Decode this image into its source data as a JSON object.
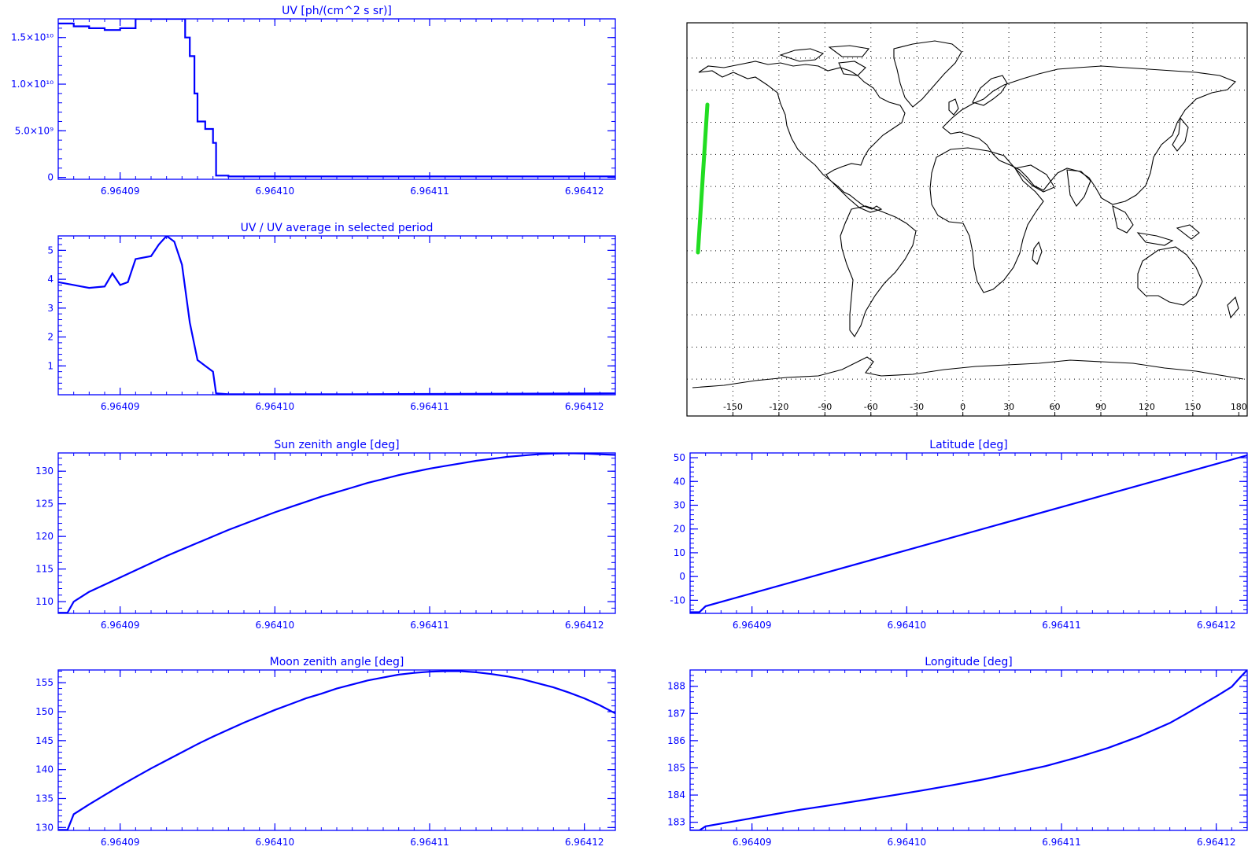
{
  "colors": {
    "axis": "#0000ff",
    "line": "#0000ff",
    "map_line": "#000000",
    "track": "#22dd22",
    "grid": "#000000"
  },
  "xticks": [
    "6.96409",
    "6.96410",
    "6.96411",
    "6.96412"
  ],
  "map": {
    "xticks": [
      "-150",
      "-120",
      "-90",
      "-60",
      "-30",
      "0",
      "30",
      "60",
      "90",
      "120",
      "150",
      "180"
    ],
    "track": {
      "lon": [
        -175,
        -174
      ],
      "lat": [
        -12,
        52
      ],
      "color": "#22dd22"
    }
  },
  "chart_data": [
    {
      "id": "uv",
      "type": "line",
      "title": "UV [ph/(cm^2 s sr)]",
      "y_tick_labels": [
        "0",
        "5.0×10⁹",
        "1.0×10¹⁰",
        "1.5×10¹⁰"
      ],
      "yticks": [
        0,
        5000000000.0,
        10000000000.0,
        15000000000.0
      ],
      "ylim": [
        -200000000.0,
        17000000000.0
      ],
      "xlim": [
        6.964086,
        6.964122
      ],
      "x": [
        6.964086,
        6.964087,
        6.964088,
        6.964089,
        6.96409,
        6.964091,
        6.964092,
        6.964093,
        6.964094,
        6.9640942,
        6.9640945,
        6.9640948,
        6.964095,
        6.9640955,
        6.964096,
        6.9640962,
        6.964097,
        6.964105,
        6.964122
      ],
      "y": [
        16500000000.0,
        16200000000.0,
        16000000000.0,
        15800000000.0,
        16000000000.0,
        17000000000.0,
        17000000000.0,
        17000000000.0,
        17000000000.0,
        15000000000.0,
        13000000000.0,
        9000000000.0,
        6000000000.0,
        5200000000.0,
        3700000000.0,
        200000000.0,
        100000000.0,
        100000000.0,
        120000000.0
      ]
    },
    {
      "id": "uv_ratio",
      "type": "line",
      "title": "UV / UV average in selected period",
      "y_tick_labels": [
        "1",
        "2",
        "3",
        "4",
        "5"
      ],
      "yticks": [
        1,
        2,
        3,
        4,
        5
      ],
      "ylim": [
        0,
        5.5
      ],
      "xlim": [
        6.964086,
        6.964122
      ],
      "x": [
        6.964086,
        6.964087,
        6.9640875,
        6.964088,
        6.964089,
        6.9640895,
        6.96409,
        6.9640905,
        6.964091,
        6.964092,
        6.9640925,
        6.964093,
        6.9640935,
        6.964094,
        6.9640945,
        6.964095,
        6.9640955,
        6.964096,
        6.9640962,
        6.964097,
        6.964105,
        6.964122
      ],
      "y": [
        3.9,
        3.8,
        3.75,
        3.7,
        3.75,
        4.2,
        3.8,
        3.9,
        4.7,
        4.8,
        5.2,
        5.5,
        5.3,
        4.5,
        2.5,
        1.2,
        1.0,
        0.8,
        0.05,
        0.02,
        0.02,
        0.05
      ]
    },
    {
      "id": "sun_zenith",
      "type": "line",
      "title": "Sun zenith angle [deg]",
      "y_tick_labels": [
        "110",
        "115",
        "120",
        "125",
        "130"
      ],
      "yticks": [
        110,
        115,
        120,
        125,
        130
      ],
      "ylim": [
        108.2,
        132.8
      ],
      "xlim": [
        6.964086,
        6.964122
      ],
      "x": [
        6.964086,
        6.9640866,
        6.964087,
        6.964088,
        6.964089,
        6.96409,
        6.964091,
        6.964092,
        6.964093,
        6.964094,
        6.964095,
        6.964096,
        6.964097,
        6.964098,
        6.964099,
        6.9641,
        6.964101,
        6.964102,
        6.964103,
        6.964104,
        6.964105,
        6.964106,
        6.964107,
        6.964108,
        6.964109,
        6.96411,
        6.964111,
        6.964112,
        6.964113,
        6.964114,
        6.964115,
        6.964116,
        6.964117,
        6.964118,
        6.964119,
        6.96412,
        6.964121,
        6.964122
      ],
      "y": [
        108.3,
        108.3,
        110.0,
        111.5,
        112.6,
        113.7,
        114.8,
        115.9,
        117.0,
        118.0,
        119.0,
        120.0,
        121.0,
        121.9,
        122.8,
        123.7,
        124.5,
        125.3,
        126.1,
        126.8,
        127.5,
        128.2,
        128.8,
        129.4,
        129.9,
        130.4,
        130.8,
        131.2,
        131.6,
        131.9,
        132.2,
        132.4,
        132.6,
        132.7,
        132.75,
        132.7,
        132.6,
        132.5
      ]
    },
    {
      "id": "latitude",
      "type": "line",
      "title": "Latitude [deg]",
      "y_tick_labels": [
        "-10",
        "0",
        "10",
        "20",
        "30",
        "40",
        "50"
      ],
      "yticks": [
        -10,
        0,
        10,
        20,
        30,
        40,
        50
      ],
      "ylim": [
        -15.5,
        52
      ],
      "xlim": [
        6.964086,
        6.964122
      ],
      "x": [
        6.964086,
        6.9640866,
        6.964087,
        6.964122
      ],
      "y": [
        -15,
        -15,
        -12.5,
        51
      ]
    },
    {
      "id": "moon_zenith",
      "type": "line",
      "title": "Moon zenith angle [deg]",
      "y_tick_labels": [
        "130",
        "135",
        "140",
        "145",
        "150",
        "155"
      ],
      "yticks": [
        130,
        135,
        140,
        145,
        150,
        155
      ],
      "ylim": [
        129.5,
        157.2
      ],
      "xlim": [
        6.964086,
        6.964122
      ],
      "x": [
        6.964086,
        6.9640866,
        6.964087,
        6.964088,
        6.964089,
        6.96409,
        6.964091,
        6.964092,
        6.964093,
        6.964094,
        6.964095,
        6.964096,
        6.964097,
        6.964098,
        6.964099,
        6.9641,
        6.964101,
        6.964102,
        6.964103,
        6.964104,
        6.964105,
        6.964106,
        6.964107,
        6.964108,
        6.964109,
        6.96411,
        6.964111,
        6.964112,
        6.964113,
        6.964114,
        6.964115,
        6.964116,
        6.964117,
        6.964118,
        6.964119,
        6.96412,
        6.964121,
        6.964122
      ],
      "y": [
        129.6,
        129.6,
        132.3,
        134.0,
        135.6,
        137.2,
        138.7,
        140.2,
        141.6,
        143.0,
        144.4,
        145.7,
        146.9,
        148.1,
        149.2,
        150.3,
        151.3,
        152.3,
        153.1,
        154.0,
        154.7,
        155.4,
        155.9,
        156.4,
        156.7,
        156.9,
        157.0,
        157.0,
        156.8,
        156.5,
        156.1,
        155.6,
        154.9,
        154.2,
        153.3,
        152.3,
        151.1,
        149.7
      ]
    },
    {
      "id": "longitude",
      "type": "line",
      "title": "Longitude [deg]",
      "y_tick_labels": [
        "183",
        "184",
        "185",
        "186",
        "187",
        "188"
      ],
      "yticks": [
        183,
        184,
        185,
        186,
        187,
        188
      ],
      "ylim": [
        182.7,
        188.6
      ],
      "xlim": [
        6.964086,
        6.964122
      ],
      "x": [
        6.964086,
        6.9640866,
        6.964087,
        6.964089,
        6.964091,
        6.964093,
        6.964095,
        6.964097,
        6.964099,
        6.964101,
        6.964103,
        6.964105,
        6.964107,
        6.964109,
        6.964111,
        6.964113,
        6.964115,
        6.964117,
        6.964118,
        6.964119,
        6.96412,
        6.964121,
        6.9641215,
        6.964122
      ],
      "y": [
        182.7,
        182.7,
        182.85,
        183.05,
        183.25,
        183.45,
        183.62,
        183.8,
        183.98,
        184.17,
        184.37,
        184.58,
        184.82,
        185.07,
        185.38,
        185.73,
        186.15,
        186.65,
        186.97,
        187.3,
        187.63,
        187.98,
        188.3,
        188.6
      ]
    }
  ]
}
